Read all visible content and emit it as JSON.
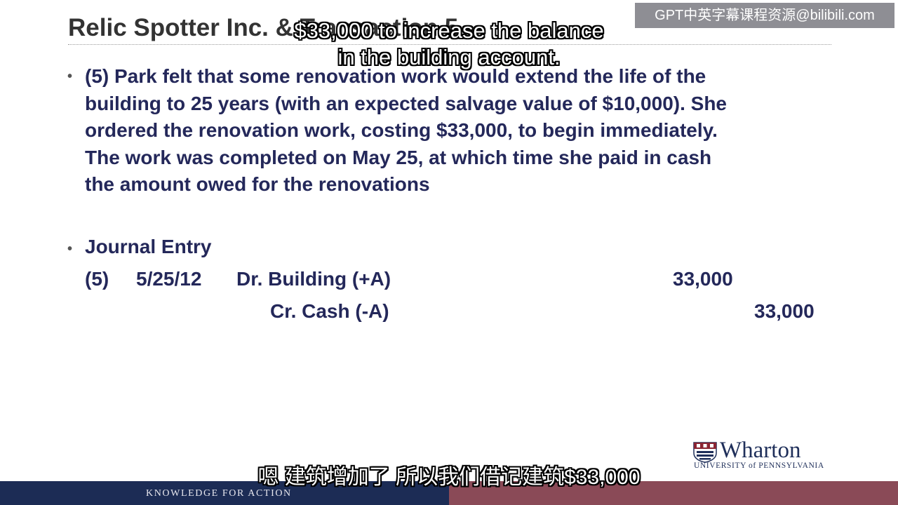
{
  "slide": {
    "title": "Relic Spotter Inc. & Transaction 5",
    "bullet_1": {
      "lines": [
        "(5) Park felt that some renovation work would extend the life of the",
        "building to 25 years (with an expected salvage value of $10,000).  She",
        "ordered the renovation work, costing $33,000, to begin immediately.",
        "The work was completed on May 25, at which time she paid in cash",
        "the amount owed for the renovations"
      ]
    },
    "bullet_2": {
      "heading": "Journal Entry",
      "entry_number": "(5)",
      "date": "5/25/12",
      "debit_account": "Dr. Building (+A)",
      "debit_amount": "33,000",
      "credit_account": "Cr. Cash (-A)",
      "credit_amount": "33,000"
    }
  },
  "subtitles": {
    "english_line_1": "$33,000 to increase the balance",
    "english_line_2": "in the building account.",
    "chinese": "嗯 建筑增加了 所以我们借记建筑$33,000"
  },
  "watermark": "GPT中英字幕课程资源@bilibili.com",
  "logo": {
    "name": "Wharton",
    "subtitle": "UNIVERSITY of PENNSYLVANIA"
  },
  "footer": {
    "tagline": "KNOWLEDGE FOR ACTION"
  }
}
